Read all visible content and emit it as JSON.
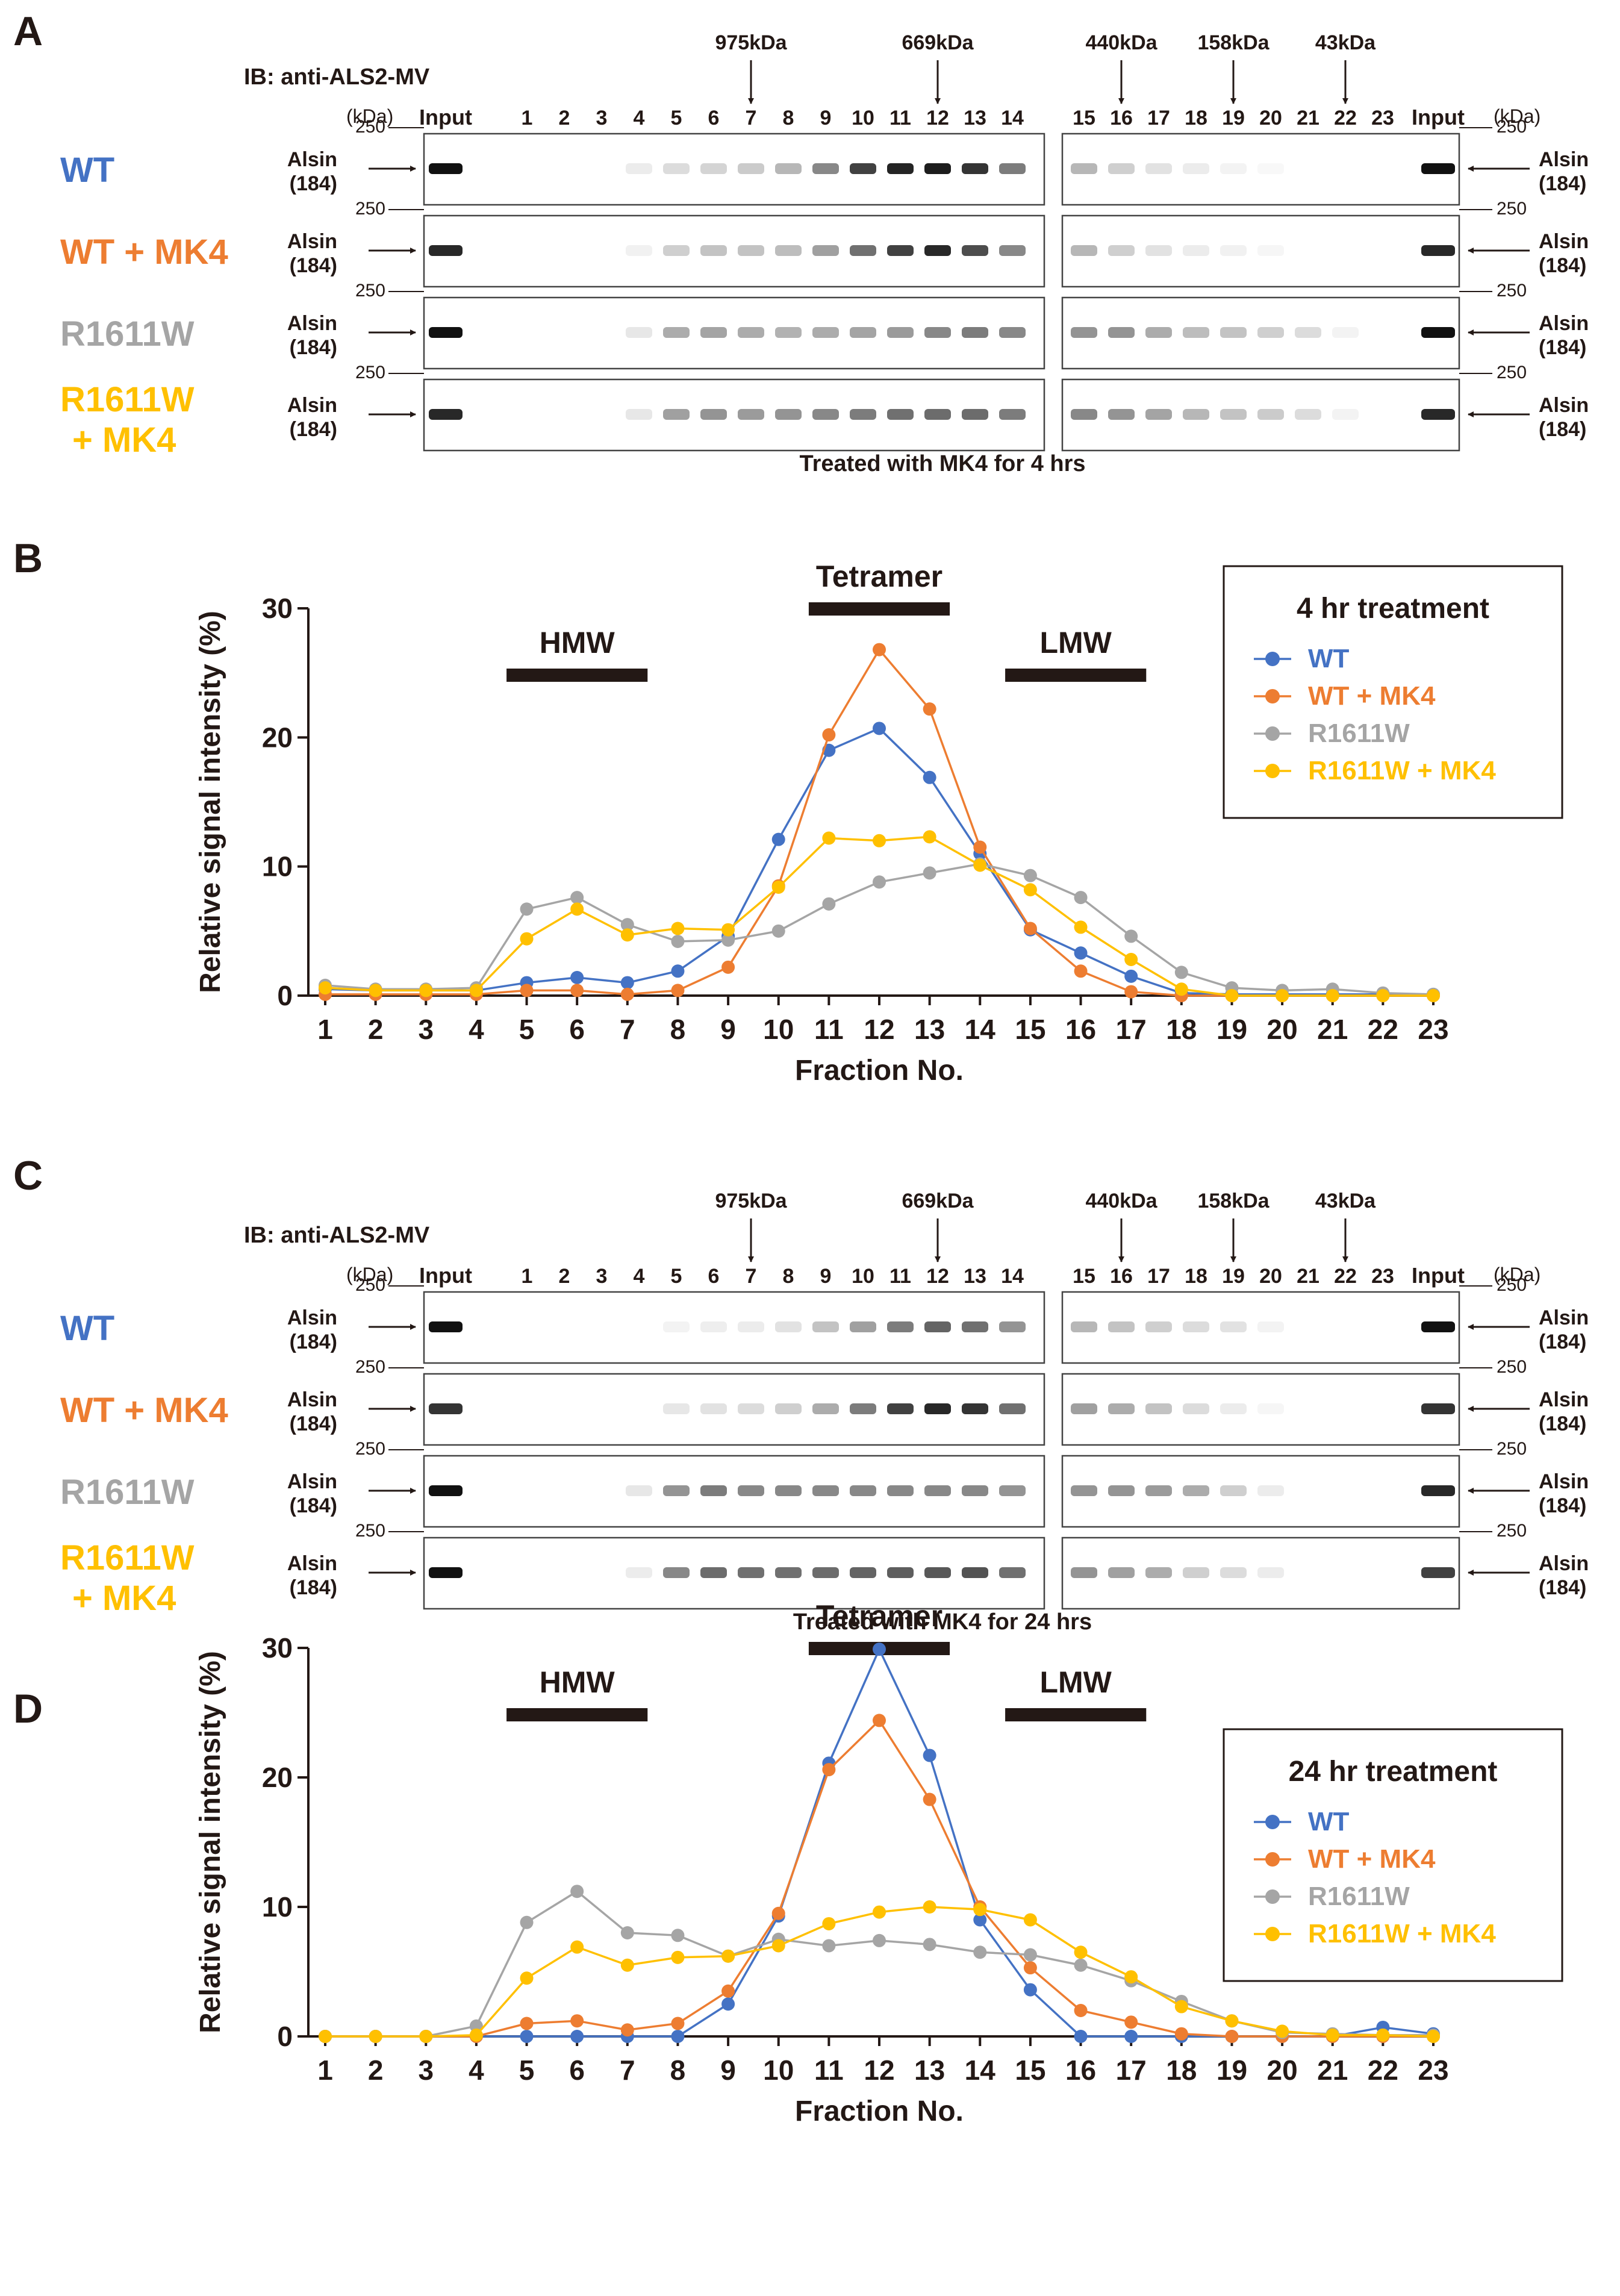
{
  "figure": {
    "panel_labels": [
      "A",
      "B",
      "C",
      "D"
    ],
    "blots": [
      {
        "ib_label": "IB: anti-ALS2-MV",
        "kda_label": "(kDa)",
        "input_label": "Input",
        "fractions": [
          "1",
          "2",
          "3",
          "4",
          "5",
          "6",
          "7",
          "8",
          "9",
          "10",
          "11",
          "12",
          "13",
          "14",
          "15",
          "16",
          "17",
          "18",
          "19",
          "20",
          "21",
          "22",
          "23"
        ],
        "markers": [
          {
            "label": "975kDa",
            "fraction": 7
          },
          {
            "label": "669kDa",
            "fraction": 12
          },
          {
            "label": "440kDa",
            "fraction": 16
          },
          {
            "label": "158kDa",
            "fraction": 19
          },
          {
            "label": "43kDa",
            "fraction": 22
          }
        ],
        "size_marker": "250",
        "band_name": "Alsin",
        "band_size": "(184)",
        "rows": [
          {
            "label": "WT",
            "color": "#4472c4",
            "pattern": "wt_4"
          },
          {
            "label": "WT + MK4",
            "color": "#ed7d31",
            "pattern": "wtmk_4"
          },
          {
            "label": "R1611W",
            "color": "#a5a5a5",
            "pattern": "r_4"
          },
          {
            "label_lines": [
              "R1611W",
              "+ MK4"
            ],
            "color": "#ffc000",
            "pattern": "rmk_4"
          }
        ],
        "caption": "Treated with MK4 for 4 hrs"
      },
      {
        "ib_label": "IB: anti-ALS2-MV",
        "kda_label": "(kDa)",
        "input_label": "Input",
        "fractions": [
          "1",
          "2",
          "3",
          "4",
          "5",
          "6",
          "7",
          "8",
          "9",
          "10",
          "11",
          "12",
          "13",
          "14",
          "15",
          "16",
          "17",
          "18",
          "19",
          "20",
          "21",
          "22",
          "23"
        ],
        "markers": [
          {
            "label": "975kDa",
            "fraction": 7
          },
          {
            "label": "669kDa",
            "fraction": 12
          },
          {
            "label": "440kDa",
            "fraction": 16
          },
          {
            "label": "158kDa",
            "fraction": 19
          },
          {
            "label": "43kDa",
            "fraction": 22
          }
        ],
        "size_marker": "250",
        "band_name": "Alsin",
        "band_size": "(184)",
        "rows": [
          {
            "label": "WT",
            "color": "#4472c4",
            "pattern": "wt_24"
          },
          {
            "label": "WT + MK4",
            "color": "#ed7d31",
            "pattern": "wtmk_24"
          },
          {
            "label": "R1611W",
            "color": "#a5a5a5",
            "pattern": "r_24"
          },
          {
            "label_lines": [
              "R1611W",
              "+ MK4"
            ],
            "color": "#ffc000",
            "pattern": "rmk_24"
          }
        ],
        "caption": "Treated with MK4 for 24 hrs"
      }
    ]
  },
  "chart_data": [
    {
      "type": "line",
      "title": "4 hr treatment",
      "xlabel": "Fraction No.",
      "ylabel": "Relative signal intensity (%)",
      "x": [
        1,
        2,
        3,
        4,
        5,
        6,
        7,
        8,
        9,
        10,
        11,
        12,
        13,
        14,
        15,
        16,
        17,
        18,
        19,
        20,
        21,
        22,
        23
      ],
      "xlim": [
        1,
        23
      ],
      "ylim": [
        0,
        30
      ],
      "yticks": [
        0,
        10,
        20,
        30
      ],
      "annotations": [
        {
          "text": "HMW",
          "from": 4.6,
          "to": 7.4
        },
        {
          "text": "Tetramer",
          "from": 10.6,
          "to": 13.4
        },
        {
          "text": "LMW",
          "from": 14.5,
          "to": 17.3
        }
      ],
      "series": [
        {
          "name": "WT",
          "color": "#4472c4",
          "values": [
            0.5,
            0.4,
            0.4,
            0.4,
            1.0,
            1.4,
            1.0,
            1.9,
            4.6,
            12.1,
            19.0,
            20.7,
            16.9,
            11.0,
            5.1,
            3.3,
            1.5,
            0.2,
            0.1,
            0.1,
            0.1,
            0.1,
            0.1
          ]
        },
        {
          "name": "WT + MK4",
          "color": "#ed7d31",
          "values": [
            0.1,
            0.1,
            0.1,
            0.1,
            0.4,
            0.4,
            0.1,
            0.4,
            2.2,
            8.5,
            20.2,
            26.8,
            22.2,
            11.5,
            5.2,
            1.9,
            0.3,
            0.0,
            0.0,
            0.0,
            0.0,
            0.0,
            0.0
          ]
        },
        {
          "name": "R1611W",
          "color": "#a5a5a5",
          "values": [
            0.8,
            0.5,
            0.5,
            0.6,
            6.7,
            7.6,
            5.5,
            4.2,
            4.3,
            5.0,
            7.1,
            8.8,
            9.5,
            10.2,
            9.3,
            7.6,
            4.6,
            1.8,
            0.6,
            0.4,
            0.5,
            0.2,
            0.1
          ]
        },
        {
          "name": "R1611W + MK4",
          "color": "#ffc000",
          "values": [
            0.6,
            0.4,
            0.4,
            0.4,
            4.4,
            6.7,
            4.7,
            5.2,
            5.1,
            8.4,
            12.2,
            12.0,
            12.3,
            10.1,
            8.2,
            5.3,
            2.8,
            0.5,
            0.0,
            0.0,
            0.0,
            0.0,
            0.0
          ]
        }
      ]
    },
    {
      "type": "line",
      "title": "24 hr treatment",
      "xlabel": "Fraction No.",
      "ylabel": "Relative signal intensity (%)",
      "x": [
        1,
        2,
        3,
        4,
        5,
        6,
        7,
        8,
        9,
        10,
        11,
        12,
        13,
        14,
        15,
        16,
        17,
        18,
        19,
        20,
        21,
        22,
        23
      ],
      "xlim": [
        1,
        23
      ],
      "ylim": [
        0,
        30
      ],
      "yticks": [
        0,
        10,
        20,
        30
      ],
      "annotations": [
        {
          "text": "HMW",
          "from": 4.6,
          "to": 7.4
        },
        {
          "text": "Tetramer",
          "from": 10.6,
          "to": 13.4
        },
        {
          "text": "LMW",
          "from": 14.5,
          "to": 17.3
        }
      ],
      "series": [
        {
          "name": "WT",
          "color": "#4472c4",
          "values": [
            0,
            0,
            0,
            0,
            0,
            0,
            0,
            0,
            2.5,
            9.3,
            21.1,
            29.9,
            21.7,
            9.0,
            3.6,
            0,
            0,
            0,
            0,
            0,
            0,
            0.7,
            0.2
          ]
        },
        {
          "name": "WT + MK4",
          "color": "#ed7d31",
          "values": [
            0,
            0,
            0,
            0,
            1.0,
            1.2,
            0.5,
            1.0,
            3.5,
            9.5,
            20.6,
            24.4,
            18.3,
            10.0,
            5.3,
            2.0,
            1.1,
            0.2,
            0,
            0,
            0,
            0,
            0
          ]
        },
        {
          "name": "R1611W",
          "color": "#a5a5a5",
          "values": [
            0,
            0,
            0,
            0.8,
            8.8,
            11.2,
            8.0,
            7.8,
            6.2,
            7.5,
            7.0,
            7.4,
            7.1,
            6.5,
            6.3,
            5.5,
            4.3,
            2.7,
            1.2,
            0.3,
            0.2,
            0.1,
            0.1
          ]
        },
        {
          "name": "R1611W + MK4",
          "color": "#ffc000",
          "values": [
            0,
            0,
            0,
            0.1,
            4.5,
            6.9,
            5.5,
            6.1,
            6.2,
            7.0,
            8.7,
            9.6,
            10.0,
            9.8,
            9.0,
            6.5,
            4.6,
            2.3,
            1.2,
            0.4,
            0.1,
            0.1,
            0
          ]
        }
      ]
    }
  ]
}
